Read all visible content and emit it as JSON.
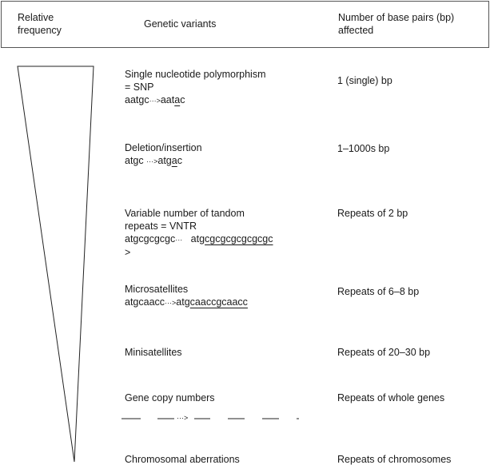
{
  "header": {
    "frequency_label": [
      "Relative",
      "frequency"
    ],
    "variants_label": "Genetic variants",
    "bp_label": [
      "Number of base pairs (bp)",
      "affected"
    ]
  },
  "rows": [
    {
      "name": "Single nucleotide polymorphism",
      "name2": "= SNP",
      "seq_before": "aatgc",
      "arrow": "···>",
      "seq_after_plain": "aat",
      "seq_after_marked": "a",
      "seq_after_tail": "c",
      "bp": "1 (single) bp"
    },
    {
      "name": "Deletion/insertion",
      "seq_before": "atgc",
      "arrow": "···>",
      "seq_after_plain": "atg",
      "seq_after_marked": "a",
      "seq_after_tail": "c",
      "bp": "1–1000s bp"
    },
    {
      "name": "Variable number of tandom",
      "name2": "repeats = VNTR",
      "seq_before": "atgcgcgcgc",
      "arrow": "···",
      "arrow_tail": ">",
      "seq_after_plain": "atg",
      "seq_after_marked": "cgcgcgcgcgcgc",
      "bp": "Repeats of 2 bp"
    },
    {
      "name": "Microsatellites",
      "seq_before": "atgcaacc",
      "arrow": "···>",
      "seq_after_plain": "atg",
      "seq_after_marked": "caaccgcaacc",
      "bp": "Repeats of 6–8 bp"
    },
    {
      "name": "Minisatellites",
      "bp": "Repeats of 20–30 bp"
    },
    {
      "name": "Gene copy numbers",
      "arrow": "···>",
      "bp": "Repeats of whole genes"
    },
    {
      "name": "Chromosomal aberrations",
      "bp": "Repeats of chromosomes"
    }
  ]
}
